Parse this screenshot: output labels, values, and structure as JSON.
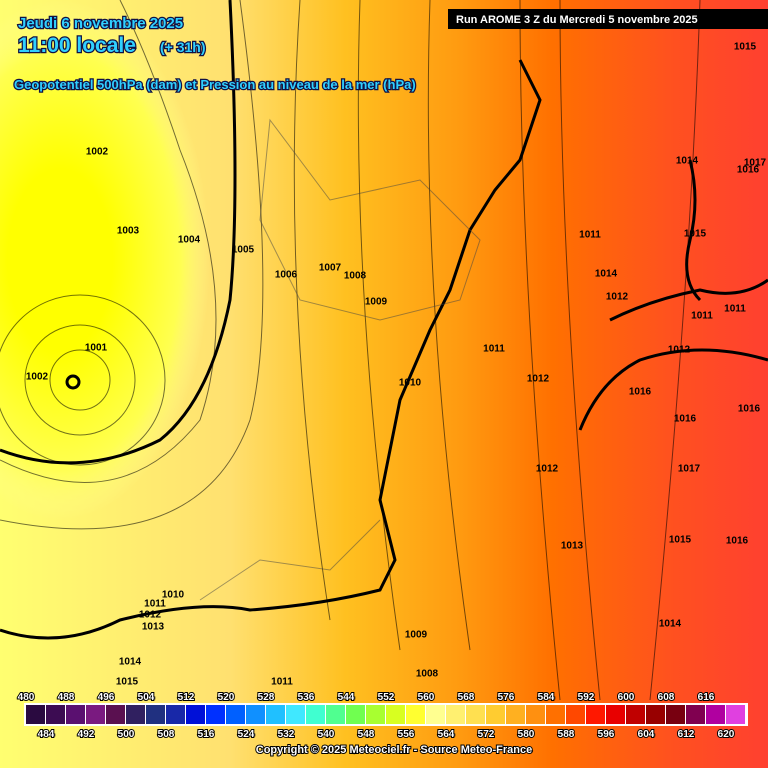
{
  "header": {
    "date": "Jeudi 6 novembre 2025",
    "time": "11:00 locale",
    "offset": "(+ 31h)",
    "subtitle": "Geopotentiel 500hPa (dam) et Pression au niveau de la mer (hPa)"
  },
  "run": "Run AROME 3 Z du Mercredi 5 novembre 2025",
  "isobars": [
    "1002",
    "1003",
    "1004",
    "1005",
    "1006",
    "1007",
    "1008",
    "1009",
    "1010",
    "1011",
    "1012",
    "1001",
    "1002",
    "1015",
    "1014",
    "1016",
    "1017",
    "1011",
    "1015",
    "1014",
    "1012",
    "1011",
    "1011",
    "1012",
    "1016",
    "1016",
    "1016",
    "1017",
    "1012",
    "1015",
    "1016",
    "1014",
    "1013",
    "1010",
    "1011",
    "1012",
    "1013",
    "1009",
    "1014",
    "1008",
    "1011",
    "1015"
  ],
  "legend": {
    "top": [
      480,
      488,
      496,
      504,
      512,
      520,
      528,
      536,
      544,
      552,
      560,
      568,
      576,
      584,
      592,
      600,
      608,
      616
    ],
    "bottom": [
      484,
      492,
      500,
      508,
      516,
      524,
      532,
      540,
      548,
      556,
      564,
      572,
      580,
      588,
      596,
      604,
      612,
      620
    ],
    "colors": [
      "#2a0a40",
      "#3c0c52",
      "#5a1070",
      "#7a1a80",
      "#5a1050",
      "#302060",
      "#203080",
      "#1828a8",
      "#0010d8",
      "#0030ff",
      "#0060ff",
      "#1090ff",
      "#20c0ff",
      "#40e8ff",
      "#40ffd0",
      "#50ff90",
      "#70ff50",
      "#a8ff30",
      "#d8ff20",
      "#ffff30",
      "#ffff90",
      "#fff070",
      "#ffe050",
      "#ffcc30",
      "#ffb020",
      "#ff9010",
      "#ff7000",
      "#ff4800",
      "#ff1800",
      "#e80000",
      "#c00000",
      "#980000",
      "#780010",
      "#800050",
      "#b000a0",
      "#e040e0"
    ]
  },
  "copyright": "Copyright © 2025 Meteociel.fr - Source Meteo-France"
}
